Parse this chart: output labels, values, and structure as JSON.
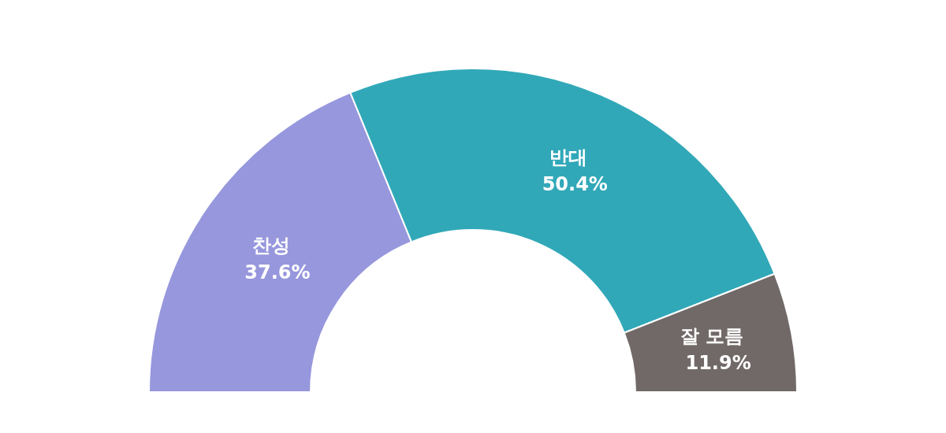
{
  "chart_data": {
    "type": "donut",
    "categories": [
      "찬성",
      "반대",
      "잘 모름"
    ],
    "values": [
      37.6,
      50.4,
      11.9
    ],
    "colors": [
      "#9797dd",
      "#31a8b8",
      "#716968"
    ],
    "value_labels": [
      "37.6%",
      "50.4%",
      "11.9%"
    ]
  }
}
